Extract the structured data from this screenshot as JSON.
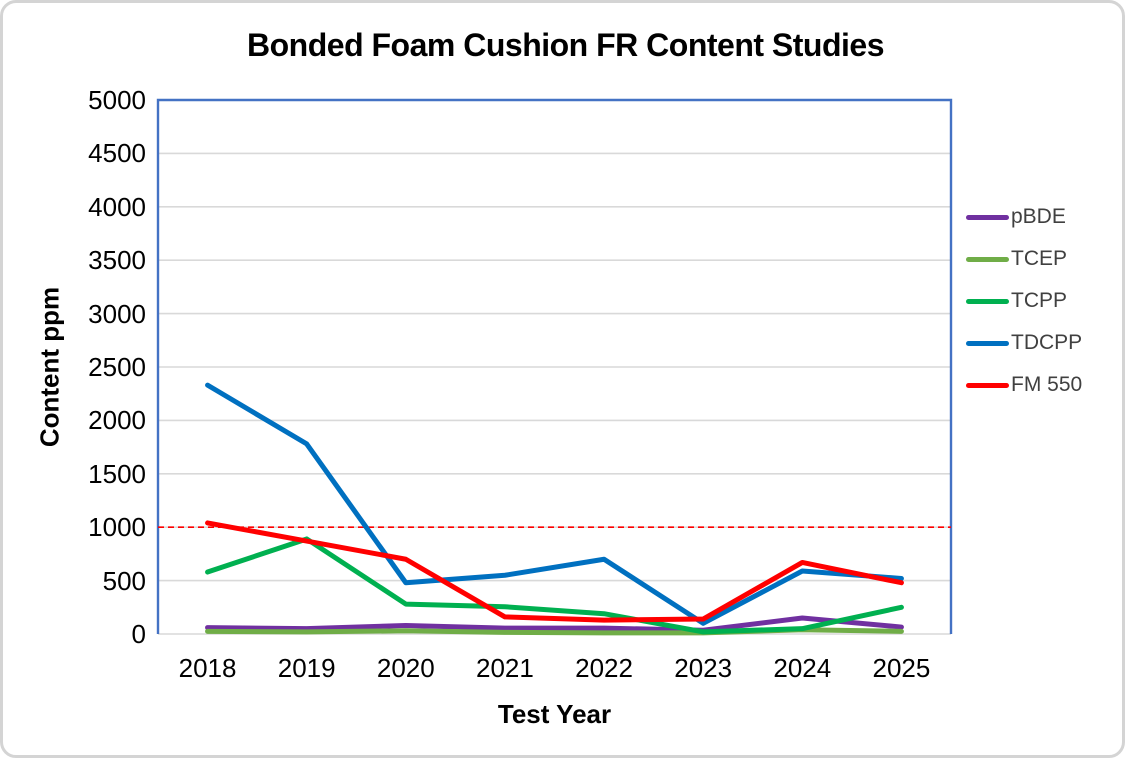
{
  "chart_data": {
    "type": "line",
    "title": "Bonded Foam Cushion FR Content Studies",
    "xlabel": "Test Year",
    "ylabel": "Content ppm",
    "categories": [
      "2018",
      "2019",
      "2020",
      "2021",
      "2022",
      "2023",
      "2024",
      "2025"
    ],
    "ylim": [
      0,
      5000
    ],
    "ytick_step": 500,
    "ytick_labels": [
      "0",
      "500",
      "1000",
      "1500",
      "2000",
      "2500",
      "3000",
      "3500",
      "4000",
      "4500",
      "5000"
    ],
    "grid": true,
    "legend_position": "right",
    "series": [
      {
        "name": "pBDE",
        "color": "#7030A0",
        "values": [
          60,
          50,
          80,
          55,
          55,
          35,
          150,
          65
        ]
      },
      {
        "name": "TCEP",
        "color": "#70AD47",
        "values": [
          25,
          20,
          30,
          15,
          10,
          10,
          40,
          25
        ]
      },
      {
        "name": "TCPP",
        "color": "#00B050",
        "values": [
          580,
          890,
          280,
          255,
          190,
          20,
          50,
          250
        ]
      },
      {
        "name": "TDCPP",
        "color": "#0070C0",
        "values": [
          2330,
          1780,
          480,
          550,
          700,
          100,
          590,
          520
        ]
      },
      {
        "name": "FM 550",
        "color": "#FF0000",
        "values": [
          1040,
          870,
          700,
          160,
          130,
          140,
          670,
          480
        ]
      }
    ],
    "reference_line": {
      "value": 1000,
      "color": "#FF0000",
      "style": "dashed"
    }
  },
  "styles": {
    "background": "#FFFFFF",
    "card_border_color": "#D4D4D4",
    "plot_border_color": "#4472C4",
    "gridline_color": "#D9D9D9",
    "text_color": "#000000",
    "legend_text_color": "#404040"
  }
}
